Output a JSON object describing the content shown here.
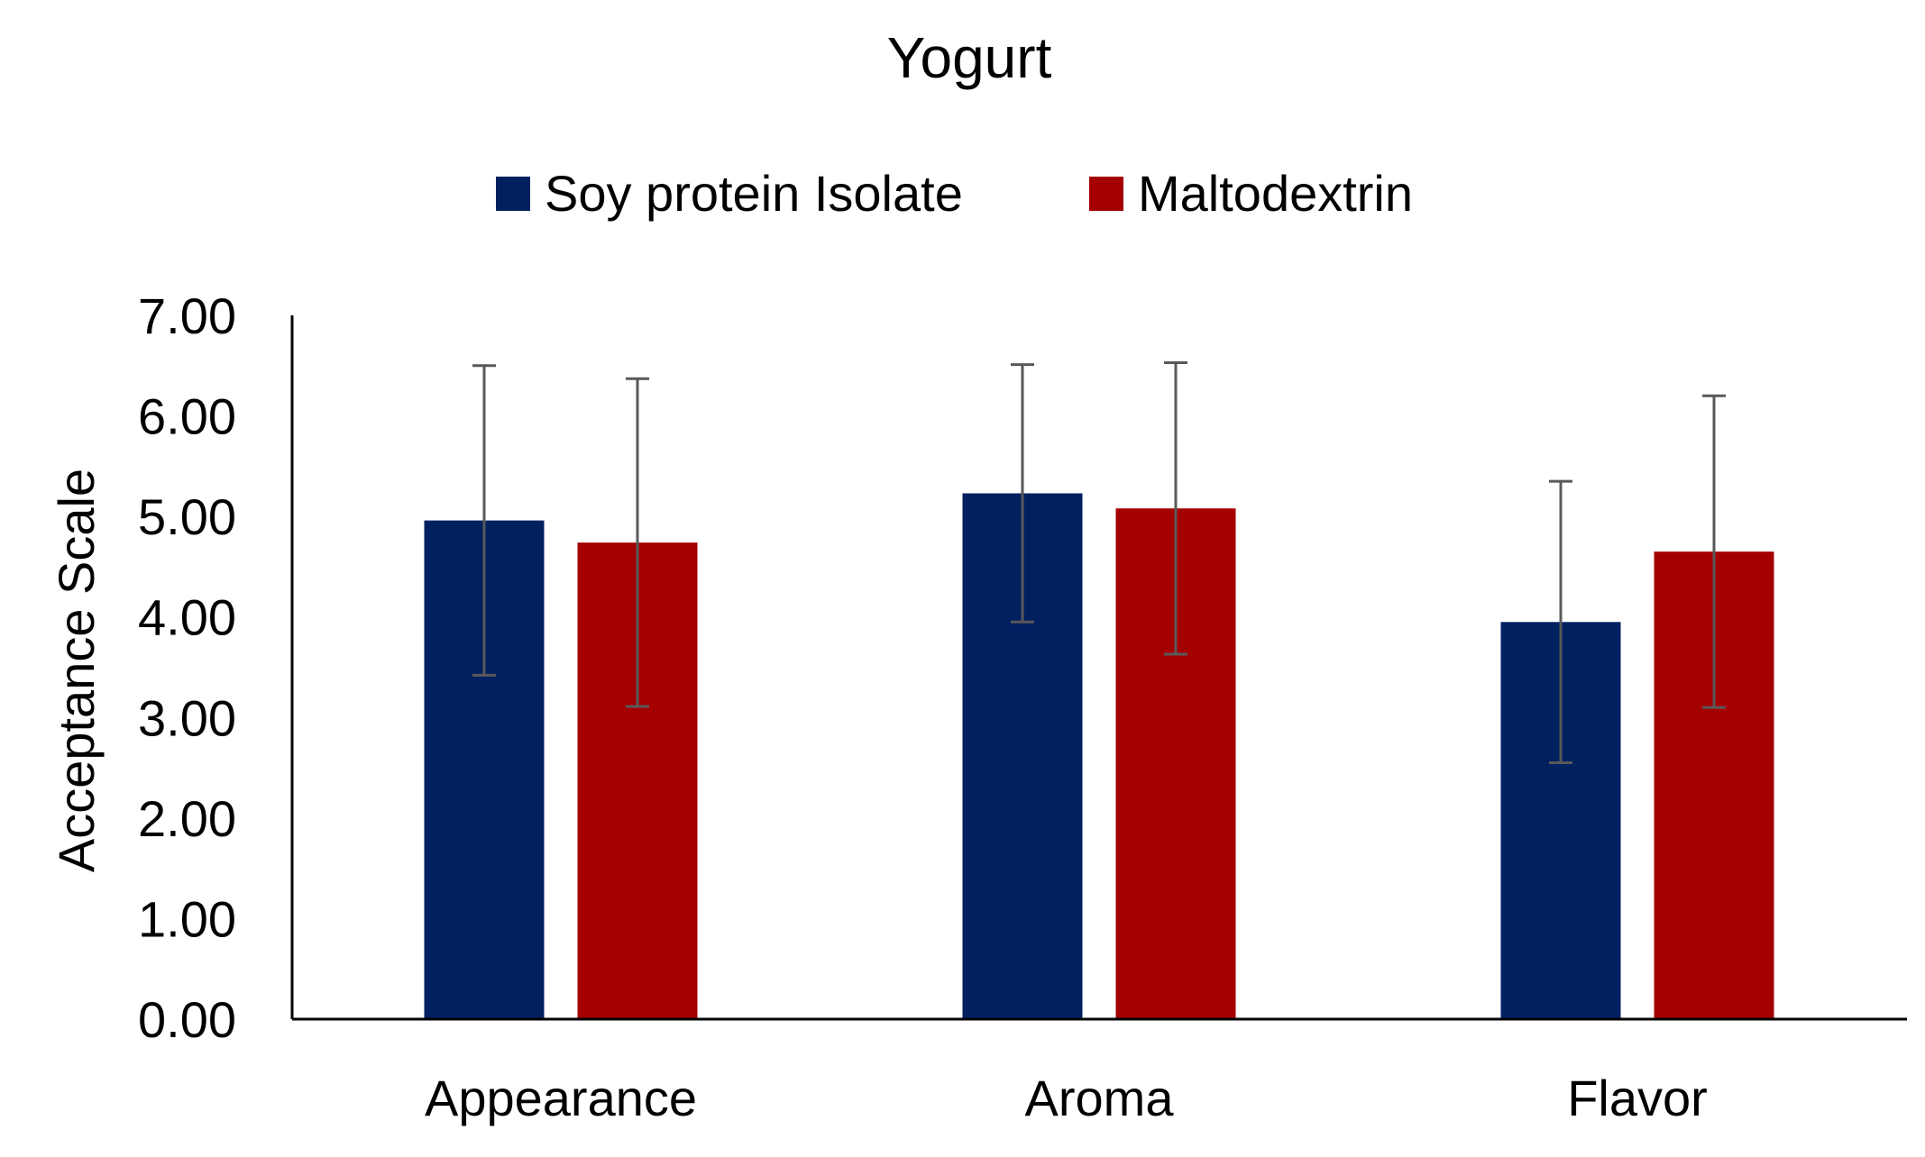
{
  "chart_data": {
    "type": "bar",
    "title": "Yogurt",
    "xlabel": "",
    "ylabel": "Acceptance Scale",
    "categories": [
      "Appearance",
      "Aroma",
      "Flavor"
    ],
    "series": [
      {
        "name": "Soy protein Isolate",
        "color": "#002060",
        "values": [
          4.96,
          5.23,
          3.95
        ],
        "errors": [
          1.54,
          1.28,
          1.4
        ]
      },
      {
        "name": "Maltodextrin",
        "color": "#A50000",
        "values": [
          4.74,
          5.08,
          4.65
        ],
        "errors": [
          1.63,
          1.45,
          1.55
        ]
      }
    ],
    "ylim": [
      0,
      7
    ],
    "yticks": [
      "0.00",
      "1.00",
      "2.00",
      "3.00",
      "4.00",
      "5.00",
      "6.00",
      "7.00"
    ],
    "ytick_values": [
      0,
      1,
      2,
      3,
      4,
      5,
      6,
      7
    ],
    "grid": false,
    "legend_position": "top-center",
    "error_bar_color": "#595959",
    "axis_color": "#000000"
  }
}
